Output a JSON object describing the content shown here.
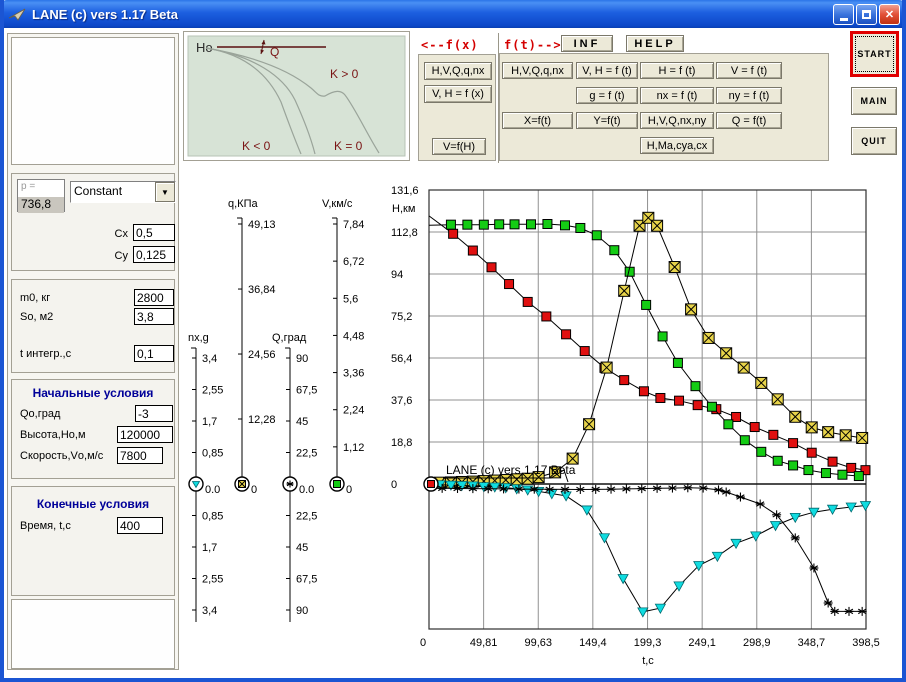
{
  "window": {
    "title": "LANE (c) vers 1.17 Beta"
  },
  "sidebar": {
    "pressure": {
      "label": "p =",
      "value": "736,8"
    },
    "model_select": {
      "value": "Constant"
    },
    "aero": {
      "cx": {
        "label": "Cx",
        "value": "0,5"
      },
      "cy": {
        "label": "Cy",
        "value": "0,125"
      }
    },
    "mass": {
      "m0": {
        "label": "m0, кг",
        "value": "2800"
      },
      "so": {
        "label": "So, м2",
        "value": "3,8"
      },
      "tint": {
        "label": "t интегр.,с",
        "value": "0,1"
      }
    },
    "initial": {
      "title": "Начальные условия",
      "q0": {
        "label": "Qo,град",
        "value": "-3"
      },
      "h0": {
        "label": "Высота,Но,м",
        "value": "120000"
      },
      "v0": {
        "label": "Скорость,Vо,м/с",
        "value": "7800"
      }
    },
    "final": {
      "title": "Конечные условия",
      "time": {
        "label": "Время, t,с",
        "value": "400"
      }
    }
  },
  "sketch": {
    "ho": "Ho",
    "q": "Q",
    "k_pos": "K > 0",
    "k_neg": "K < 0",
    "k_zero": "K = 0"
  },
  "fx_panel": {
    "label": "<--f(x)",
    "buttons": [
      "H,V,Q,q,nx",
      "V, H = f (x)",
      "V=f(H)"
    ]
  },
  "ft_panel": {
    "label": "f(t)-->",
    "inf": "INF",
    "help": "HELP",
    "buttons": [
      {
        "label": "H,V,Q,q,nx",
        "row": 1,
        "col": 1
      },
      {
        "label": "V, H = f (t)",
        "row": 1,
        "col": 2
      },
      {
        "label": "H = f (t)",
        "row": 1,
        "col": 3
      },
      {
        "label": "V = f (t)",
        "row": 1,
        "col": 4
      },
      {
        "label": "g = f (t)",
        "row": 2,
        "col": 2
      },
      {
        "label": "nx = f (t)",
        "row": 2,
        "col": 3
      },
      {
        "label": "ny = f (t)",
        "row": 2,
        "col": 4
      },
      {
        "label": "X=f(t)",
        "row": 3,
        "col": 1
      },
      {
        "label": "Y=f(t)",
        "row": 3,
        "col": 2
      },
      {
        "label": "H,V,Q,nx,ny",
        "row": 3,
        "col": 3
      },
      {
        "label": "Q = f(t)",
        "row": 3,
        "col": 4
      },
      {
        "label": "H,Ma,cya,cx",
        "row": 4,
        "col": 3
      }
    ]
  },
  "actions": {
    "start": "START",
    "main": "MAIN",
    "quit": "QUIT"
  },
  "chart_data": {
    "type": "line",
    "annotation": "LANE (c) vers 1.17 Beta",
    "xlabel": "t,c",
    "x_range": [
      0,
      398.5
    ],
    "x_ticks": [
      {
        "v": 0,
        "label": "0"
      },
      {
        "v": 49.81,
        "label": "49,81"
      },
      {
        "v": 99.63,
        "label": "99,63"
      },
      {
        "v": 149.4,
        "label": "149,4"
      },
      {
        "v": 199.3,
        "label": "199,3"
      },
      {
        "v": 249.1,
        "label": "249,1"
      },
      {
        "v": 298.9,
        "label": "298,9"
      },
      {
        "v": 348.7,
        "label": "348,7"
      },
      {
        "v": 398.5,
        "label": "398,5"
      }
    ],
    "main_axis": {
      "id": "H",
      "title": "H,км",
      "range": [
        0,
        131.6
      ],
      "zero_marker": "square-red",
      "ticks": [
        {
          "v": 131.6,
          "label": "131,6"
        },
        {
          "v": 112.8,
          "label": "112,8"
        },
        {
          "v": 94,
          "label": "94"
        },
        {
          "v": 75.2,
          "label": "75,2"
        },
        {
          "v": 56.4,
          "label": "56,4"
        },
        {
          "v": 37.6,
          "label": "37,6"
        },
        {
          "v": 18.8,
          "label": "18,8"
        },
        {
          "v": 0,
          "label": "0"
        }
      ]
    },
    "mini_axes": [
      {
        "id": "nx",
        "title": "nx,g",
        "range": [
          -3.4,
          3.4
        ],
        "zero_label": "0.0",
        "marker": "triangle-cyan",
        "ticks": [
          {
            "v": 3.4,
            "label": "3,4"
          },
          {
            "v": 2.55,
            "label": "2,55"
          },
          {
            "v": 1.7,
            "label": "1,7"
          },
          {
            "v": 0.85,
            "label": "0,85"
          },
          {
            "v": -0.85,
            "label": "0,85"
          },
          {
            "v": -1.7,
            "label": "1,7"
          },
          {
            "v": -2.55,
            "label": "2,55"
          },
          {
            "v": -3.4,
            "label": "3,4"
          }
        ]
      },
      {
        "id": "q",
        "title": "q,КПа",
        "range": [
          0,
          49.13
        ],
        "zero_label": "0",
        "marker": "square-x-yellow",
        "ticks": [
          {
            "v": 49.13,
            "label": "49,13"
          },
          {
            "v": 36.84,
            "label": "36,84"
          },
          {
            "v": 24.56,
            "label": "24,56"
          },
          {
            "v": 12.28,
            "label": "12,28"
          }
        ]
      },
      {
        "id": "Q",
        "title": "Q,град",
        "range": [
          -90,
          90
        ],
        "zero_label": "0.0",
        "marker": "asterisk",
        "ticks": [
          {
            "v": 90,
            "label": "90"
          },
          {
            "v": 67.5,
            "label": "67,5"
          },
          {
            "v": 45,
            "label": "45"
          },
          {
            "v": 22.5,
            "label": "22,5"
          },
          {
            "v": -22.5,
            "label": "22,5"
          },
          {
            "v": -45,
            "label": "45"
          },
          {
            "v": -67.5,
            "label": "67,5"
          },
          {
            "v": -90,
            "label": "90"
          }
        ]
      },
      {
        "id": "V",
        "title": "V,км/с",
        "range": [
          0,
          7.84
        ],
        "zero_label": "0",
        "marker": "square-green",
        "ticks": [
          {
            "v": 7.84,
            "label": "7,84"
          },
          {
            "v": 6.72,
            "label": "6,72"
          },
          {
            "v": 5.6,
            "label": "5,6"
          },
          {
            "v": 4.48,
            "label": "4,48"
          },
          {
            "v": 3.36,
            "label": "3,36"
          },
          {
            "v": 2.24,
            "label": "2,24"
          },
          {
            "v": 1.12,
            "label": "1,12"
          }
        ]
      }
    ],
    "series": [
      {
        "name": "H",
        "axis": "H",
        "marker": "square",
        "color": "#e01010",
        "points": [
          [
            0,
            120
          ],
          [
            22,
            112
          ],
          [
            40,
            104.5
          ],
          [
            57,
            97
          ],
          [
            73,
            89.5
          ],
          [
            90,
            81.5
          ],
          [
            107,
            75
          ],
          [
            125,
            67
          ],
          [
            142,
            59.5
          ],
          [
            160,
            52
          ],
          [
            178,
            46.5
          ],
          [
            196,
            41.5
          ],
          [
            211,
            38.5
          ],
          [
            228,
            37.3
          ],
          [
            245,
            35.3
          ],
          [
            262,
            33.5
          ],
          [
            280,
            30
          ],
          [
            297,
            25.5
          ],
          [
            314,
            22
          ],
          [
            332,
            18.3
          ],
          [
            349,
            14
          ],
          [
            368,
            10
          ],
          [
            385,
            7.2
          ],
          [
            398,
            6.2
          ]
        ]
      },
      {
        "name": "V",
        "axis": "V",
        "marker": "square",
        "color": "#14cc14",
        "points": [
          [
            0,
            7.8
          ],
          [
            20,
            7.82
          ],
          [
            35,
            7.82
          ],
          [
            50,
            7.82
          ],
          [
            64,
            7.83
          ],
          [
            78,
            7.83
          ],
          [
            93,
            7.83
          ],
          [
            108,
            7.84
          ],
          [
            124,
            7.8
          ],
          [
            138,
            7.72
          ],
          [
            153,
            7.5
          ],
          [
            169,
            7.05
          ],
          [
            183,
            6.4
          ],
          [
            198,
            5.4
          ],
          [
            213,
            4.45
          ],
          [
            227,
            3.65
          ],
          [
            243,
            2.95
          ],
          [
            258,
            2.33
          ],
          [
            273,
            1.8
          ],
          [
            288,
            1.32
          ],
          [
            303,
            0.97
          ],
          [
            318,
            0.7
          ],
          [
            332,
            0.56
          ],
          [
            346,
            0.42
          ],
          [
            362,
            0.33
          ],
          [
            377,
            0.28
          ],
          [
            392,
            0.24
          ]
        ]
      },
      {
        "name": "q",
        "axis": "q",
        "marker": "square-x",
        "color": "#e8d44a",
        "points": [
          [
            0,
            0.2
          ],
          [
            10,
            0.25
          ],
          [
            20,
            0.3
          ],
          [
            30,
            0.38
          ],
          [
            40,
            0.45
          ],
          [
            50,
            0.55
          ],
          [
            60,
            0.65
          ],
          [
            70,
            0.75
          ],
          [
            80,
            0.88
          ],
          [
            90,
            1.0
          ],
          [
            100,
            1.3
          ],
          [
            115,
            2.2
          ],
          [
            131,
            4.8
          ],
          [
            146,
            11.3
          ],
          [
            162,
            22
          ],
          [
            178,
            36.5
          ],
          [
            192,
            48.8
          ],
          [
            200,
            50.3
          ],
          [
            208,
            48.8
          ],
          [
            224,
            41
          ],
          [
            239,
            33
          ],
          [
            255,
            27.6
          ],
          [
            271,
            24.7
          ],
          [
            287,
            22
          ],
          [
            303,
            19.1
          ],
          [
            318,
            16
          ],
          [
            334,
            12.7
          ],
          [
            349,
            10.7
          ],
          [
            364,
            9.8
          ],
          [
            380,
            9.2
          ],
          [
            395,
            8.7
          ]
        ]
      },
      {
        "name": "nx",
        "axis": "nx",
        "marker": "triangle",
        "color": "#10dce0",
        "points": [
          [
            0,
            -0.01
          ],
          [
            10,
            -0.02
          ],
          [
            20,
            -0.03
          ],
          [
            30,
            -0.04
          ],
          [
            40,
            -0.05
          ],
          [
            50,
            -0.07
          ],
          [
            60,
            -0.08
          ],
          [
            70,
            -0.1
          ],
          [
            80,
            -0.13
          ],
          [
            90,
            -0.16
          ],
          [
            100,
            -0.2
          ],
          [
            112,
            -0.26
          ],
          [
            125,
            -0.32
          ],
          [
            144,
            -0.7
          ],
          [
            160,
            -1.45
          ],
          [
            177,
            -2.55
          ],
          [
            195,
            -3.45
          ],
          [
            211,
            -3.35
          ],
          [
            228,
            -2.75
          ],
          [
            246,
            -2.2
          ],
          [
            263,
            -1.95
          ],
          [
            280,
            -1.6
          ],
          [
            298,
            -1.4
          ],
          [
            316,
            -1.12
          ],
          [
            334,
            -0.9
          ],
          [
            351,
            -0.76
          ],
          [
            368,
            -0.68
          ],
          [
            385,
            -0.62
          ],
          [
            398,
            -0.58
          ]
        ]
      },
      {
        "name": "Q",
        "axis": "Q",
        "marker": "asterisk",
        "color": "#000000",
        "points": [
          [
            0,
            -3
          ],
          [
            12,
            -3.1
          ],
          [
            26,
            -3.2
          ],
          [
            40,
            -3.3
          ],
          [
            54,
            -3.4
          ],
          [
            68,
            -3.5
          ],
          [
            82,
            -3.6
          ],
          [
            96,
            -3.7
          ],
          [
            110,
            -3.8
          ],
          [
            124,
            -3.85
          ],
          [
            138,
            -3.9
          ],
          [
            152,
            -3.85
          ],
          [
            166,
            -3.7
          ],
          [
            180,
            -3.5
          ],
          [
            194,
            -3.3
          ],
          [
            208,
            -3.1
          ],
          [
            222,
            -2.9
          ],
          [
            236,
            -2.7
          ],
          [
            250,
            -2.9
          ],
          [
            264,
            -4.2
          ],
          [
            271,
            -5.7
          ],
          [
            284,
            -9.3
          ],
          [
            302,
            -14.3
          ],
          [
            317,
            -22
          ],
          [
            334,
            -38.5
          ],
          [
            351,
            -60
          ],
          [
            364,
            -85
          ],
          [
            370,
            -91
          ],
          [
            383,
            -91
          ],
          [
            395,
            -91
          ]
        ]
      }
    ]
  }
}
